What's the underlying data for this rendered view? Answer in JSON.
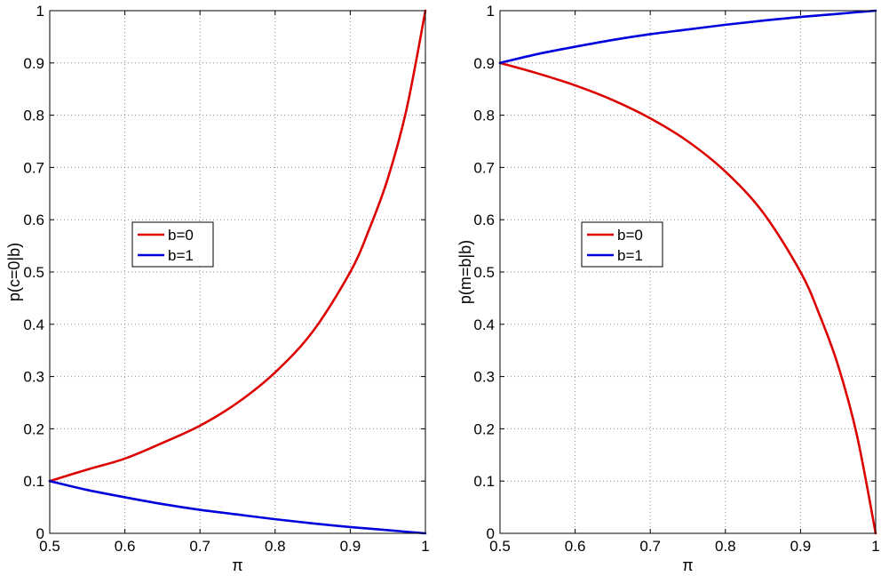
{
  "chart_data": [
    {
      "type": "line",
      "title": "",
      "xlabel": "π",
      "ylabel": "p(c=0|b)",
      "xlim": [
        0.5,
        1
      ],
      "ylim": [
        0,
        1
      ],
      "xticks": [
        0.5,
        0.6,
        0.7,
        0.8,
        0.9,
        1
      ],
      "xtick_labels": [
        "0.5",
        "0.6",
        "0.7",
        "0.8",
        "0.9",
        "1"
      ],
      "yticks": [
        0,
        0.1,
        0.2,
        0.3,
        0.4,
        0.5,
        0.6,
        0.7,
        0.8,
        0.9,
        1
      ],
      "ytick_labels": [
        "0",
        "0.1",
        "0.2",
        "0.3",
        "0.4",
        "0.5",
        "0.6",
        "0.7",
        "0.8",
        "0.9",
        "1"
      ],
      "grid": true,
      "legend_position": "center-left",
      "series": [
        {
          "name": "b=0",
          "color": "#dd0000",
          "x": [
            0.5,
            0.55,
            0.6,
            0.65,
            0.7,
            0.75,
            0.8,
            0.85,
            0.9,
            0.925,
            0.95,
            0.975,
            1
          ],
          "y": [
            0.1,
            0.122,
            0.143,
            0.173,
            0.206,
            0.25,
            0.308,
            0.386,
            0.5,
            0.581,
            0.679,
            0.812,
            1
          ]
        },
        {
          "name": "b=1",
          "color": "#0000dd",
          "x": [
            0.5,
            0.55,
            0.6,
            0.65,
            0.7,
            0.75,
            0.8,
            0.85,
            0.9,
            0.925,
            0.95,
            0.975,
            1
          ],
          "y": [
            0.1,
            0.083,
            0.069,
            0.056,
            0.045,
            0.036,
            0.027,
            0.019,
            0.012,
            0.009,
            0.006,
            0.003,
            0
          ]
        }
      ]
    },
    {
      "type": "line",
      "title": "",
      "xlabel": "π",
      "ylabel": "p(m=b|b)",
      "xlim": [
        0.5,
        1
      ],
      "ylim": [
        0,
        1
      ],
      "xticks": [
        0.5,
        0.6,
        0.7,
        0.8,
        0.9,
        1
      ],
      "xtick_labels": [
        "0.5",
        "0.6",
        "0.7",
        "0.8",
        "0.9",
        "1"
      ],
      "yticks": [
        0,
        0.1,
        0.2,
        0.3,
        0.4,
        0.5,
        0.6,
        0.7,
        0.8,
        0.9,
        1
      ],
      "ytick_labels": [
        "0",
        "0.1",
        "0.2",
        "0.3",
        "0.4",
        "0.5",
        "0.6",
        "0.7",
        "0.8",
        "0.9",
        "1"
      ],
      "grid": true,
      "legend_position": "center-left",
      "series": [
        {
          "name": "b=0",
          "color": "#dd0000",
          "x": [
            0.5,
            0.55,
            0.6,
            0.65,
            0.7,
            0.75,
            0.8,
            0.85,
            0.9,
            0.925,
            0.95,
            0.975,
            1
          ],
          "y": [
            0.9,
            0.88,
            0.857,
            0.829,
            0.794,
            0.75,
            0.692,
            0.614,
            0.5,
            0.419,
            0.321,
            0.188,
            0
          ]
        },
        {
          "name": "b=1",
          "color": "#0000dd",
          "x": [
            0.5,
            0.55,
            0.6,
            0.65,
            0.7,
            0.75,
            0.8,
            0.85,
            0.9,
            0.925,
            0.95,
            0.975,
            1
          ],
          "y": [
            0.9,
            0.917,
            0.931,
            0.944,
            0.955,
            0.964,
            0.973,
            0.981,
            0.988,
            0.991,
            0.994,
            0.997,
            1
          ]
        }
      ]
    }
  ]
}
